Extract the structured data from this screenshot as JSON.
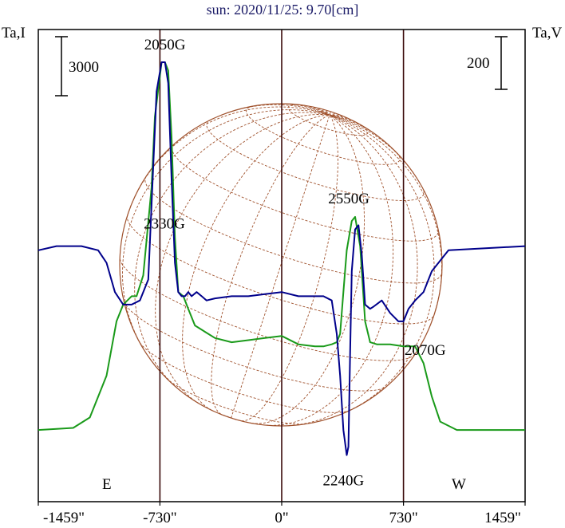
{
  "chart_data": {
    "type": "line",
    "title": "sun: 2020/11/25: 9.70[cm]",
    "ylabel_left": "Ta,I",
    "ylabel_right": "Ta,V",
    "scale_left": "3000",
    "scale_right": "200",
    "xlim": [
      -1459,
      1459
    ],
    "ylim": [
      0,
      1
    ],
    "x_ticks": [
      {
        "value": -1459,
        "label": "-1459\""
      },
      {
        "value": -730,
        "label": "-730\""
      },
      {
        "value": 0,
        "label": "0\""
      },
      {
        "value": 730,
        "label": "730\""
      },
      {
        "value": 1459,
        "label": "1459\""
      }
    ],
    "vertical_lines": [
      -730,
      0,
      730
    ],
    "limb_lines": [
      -730,
      730
    ],
    "limb_labels": {
      "east": "E",
      "west": "W"
    },
    "colors": {
      "stokes_i": "#1a9a1a",
      "stokes_v": "#00008b",
      "disk": "#a0522d",
      "title": "#1a1a66",
      "frame": "#000000",
      "vline": "#3a0a0a"
    },
    "series": [
      {
        "name": "I",
        "x": [
          -1459,
          -1250,
          -1150,
          -1050,
          -990,
          -950,
          -900,
          -870,
          -830,
          -780,
          -760,
          -720,
          -700,
          -680,
          -660,
          -640,
          -620,
          -590,
          -560,
          -520,
          -460,
          -400,
          -300,
          -200,
          -100,
          0,
          100,
          200,
          250,
          300,
          330,
          350,
          370,
          390,
          420,
          440,
          470,
          500,
          530,
          570,
          650,
          730,
          800,
          850,
          900,
          950,
          1050,
          1150,
          1459
        ],
        "y": [
          0.12,
          0.125,
          0.15,
          0.25,
          0.38,
          0.42,
          0.44,
          0.44,
          0.49,
          0.7,
          0.87,
          1.0,
          1.0,
          0.98,
          0.82,
          0.58,
          0.45,
          0.44,
          0.41,
          0.37,
          0.355,
          0.34,
          0.33,
          0.335,
          0.34,
          0.345,
          0.325,
          0.32,
          0.32,
          0.325,
          0.33,
          0.35,
          0.45,
          0.55,
          0.62,
          0.63,
          0.56,
          0.38,
          0.33,
          0.325,
          0.325,
          0.32,
          0.32,
          0.28,
          0.2,
          0.14,
          0.12,
          0.12,
          0.12
        ]
      },
      {
        "name": "V",
        "x": [
          -1459,
          -1350,
          -1200,
          -1100,
          -1050,
          -1000,
          -950,
          -900,
          -850,
          -800,
          -770,
          -750,
          -720,
          -700,
          -680,
          -660,
          -640,
          -620,
          -600,
          -580,
          -560,
          -540,
          -510,
          -480,
          -450,
          -400,
          -300,
          -200,
          -100,
          0,
          100,
          200,
          250,
          300,
          330,
          350,
          370,
          390,
          400,
          410,
          420,
          440,
          460,
          480,
          500,
          530,
          550,
          600,
          650,
          700,
          730,
          760,
          800,
          850,
          900,
          1000,
          1459
        ],
        "y": [
          0.55,
          0.56,
          0.56,
          0.55,
          0.52,
          0.45,
          0.42,
          0.42,
          0.43,
          0.48,
          0.75,
          0.93,
          1.0,
          1.0,
          0.95,
          0.72,
          0.52,
          0.45,
          0.44,
          0.44,
          0.45,
          0.44,
          0.45,
          0.44,
          0.43,
          0.435,
          0.44,
          0.44,
          0.445,
          0.45,
          0.44,
          0.44,
          0.44,
          0.43,
          0.35,
          0.25,
          0.12,
          0.06,
          0.08,
          0.3,
          0.5,
          0.6,
          0.61,
          0.54,
          0.42,
          0.41,
          0.415,
          0.43,
          0.4,
          0.38,
          0.38,
          0.41,
          0.43,
          0.45,
          0.5,
          0.55,
          0.56
        ]
      }
    ],
    "annotations": [
      {
        "text": "2050G",
        "x": -700,
        "y": 1.0,
        "series": "V"
      },
      {
        "text": "2330G",
        "x": -540,
        "y": 0.56,
        "series": "V"
      },
      {
        "text": "2550G",
        "x": 470,
        "y": 0.62,
        "series": "I"
      },
      {
        "text": "2240G",
        "x": 390,
        "y": 0.06,
        "series": "V"
      },
      {
        "text": "2070G",
        "x": 760,
        "y": 0.38,
        "series": "V"
      }
    ]
  }
}
